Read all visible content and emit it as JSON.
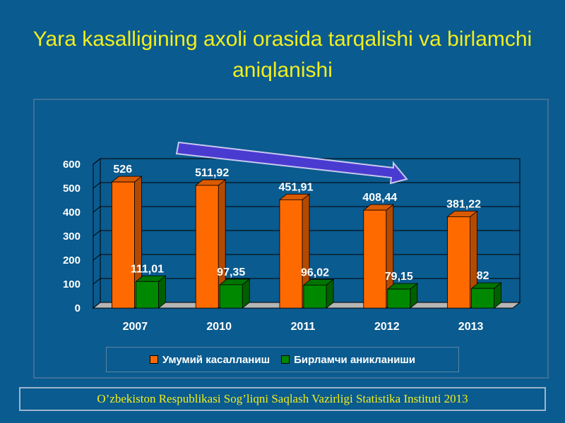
{
  "slide": {
    "title": "Yara kasalligining axoli orasida tarqalishi va birlamchi aniqlanishi",
    "source": "O’zbekiston Respublikasi Sog’liqni Saqlash Vazirligi Statistika Instituti 2013"
  },
  "colors": {
    "background": "#0a5b8f",
    "title": "#f2ee1e",
    "series1": "#ff6a00",
    "series2": "#008800",
    "arrow": "#4a3bd0"
  },
  "chart_data": {
    "type": "bar",
    "categories": [
      "2007",
      "2010",
      "2011",
      "2012",
      "2013"
    ],
    "series": [
      {
        "name": "Умумий касалланиш",
        "values": [
          526,
          511.92,
          451.91,
          408.44,
          381.22
        ],
        "labels": [
          "526",
          "511,92",
          "451,91",
          "408,44",
          "381,22"
        ]
      },
      {
        "name": "Бирламчи аникланиши",
        "values": [
          111.01,
          97.35,
          96.02,
          79.15,
          82
        ],
        "labels": [
          "111,01",
          "97,35",
          "96,02",
          "79,15",
          "82"
        ]
      }
    ],
    "yticks": [
      "0",
      "100",
      "200",
      "300",
      "400",
      "500",
      "600"
    ],
    "ylim": [
      0,
      600
    ],
    "grid": true,
    "legend": "bottom",
    "style": "3d-clustered-bar",
    "annotation": "downward trend arrow"
  }
}
